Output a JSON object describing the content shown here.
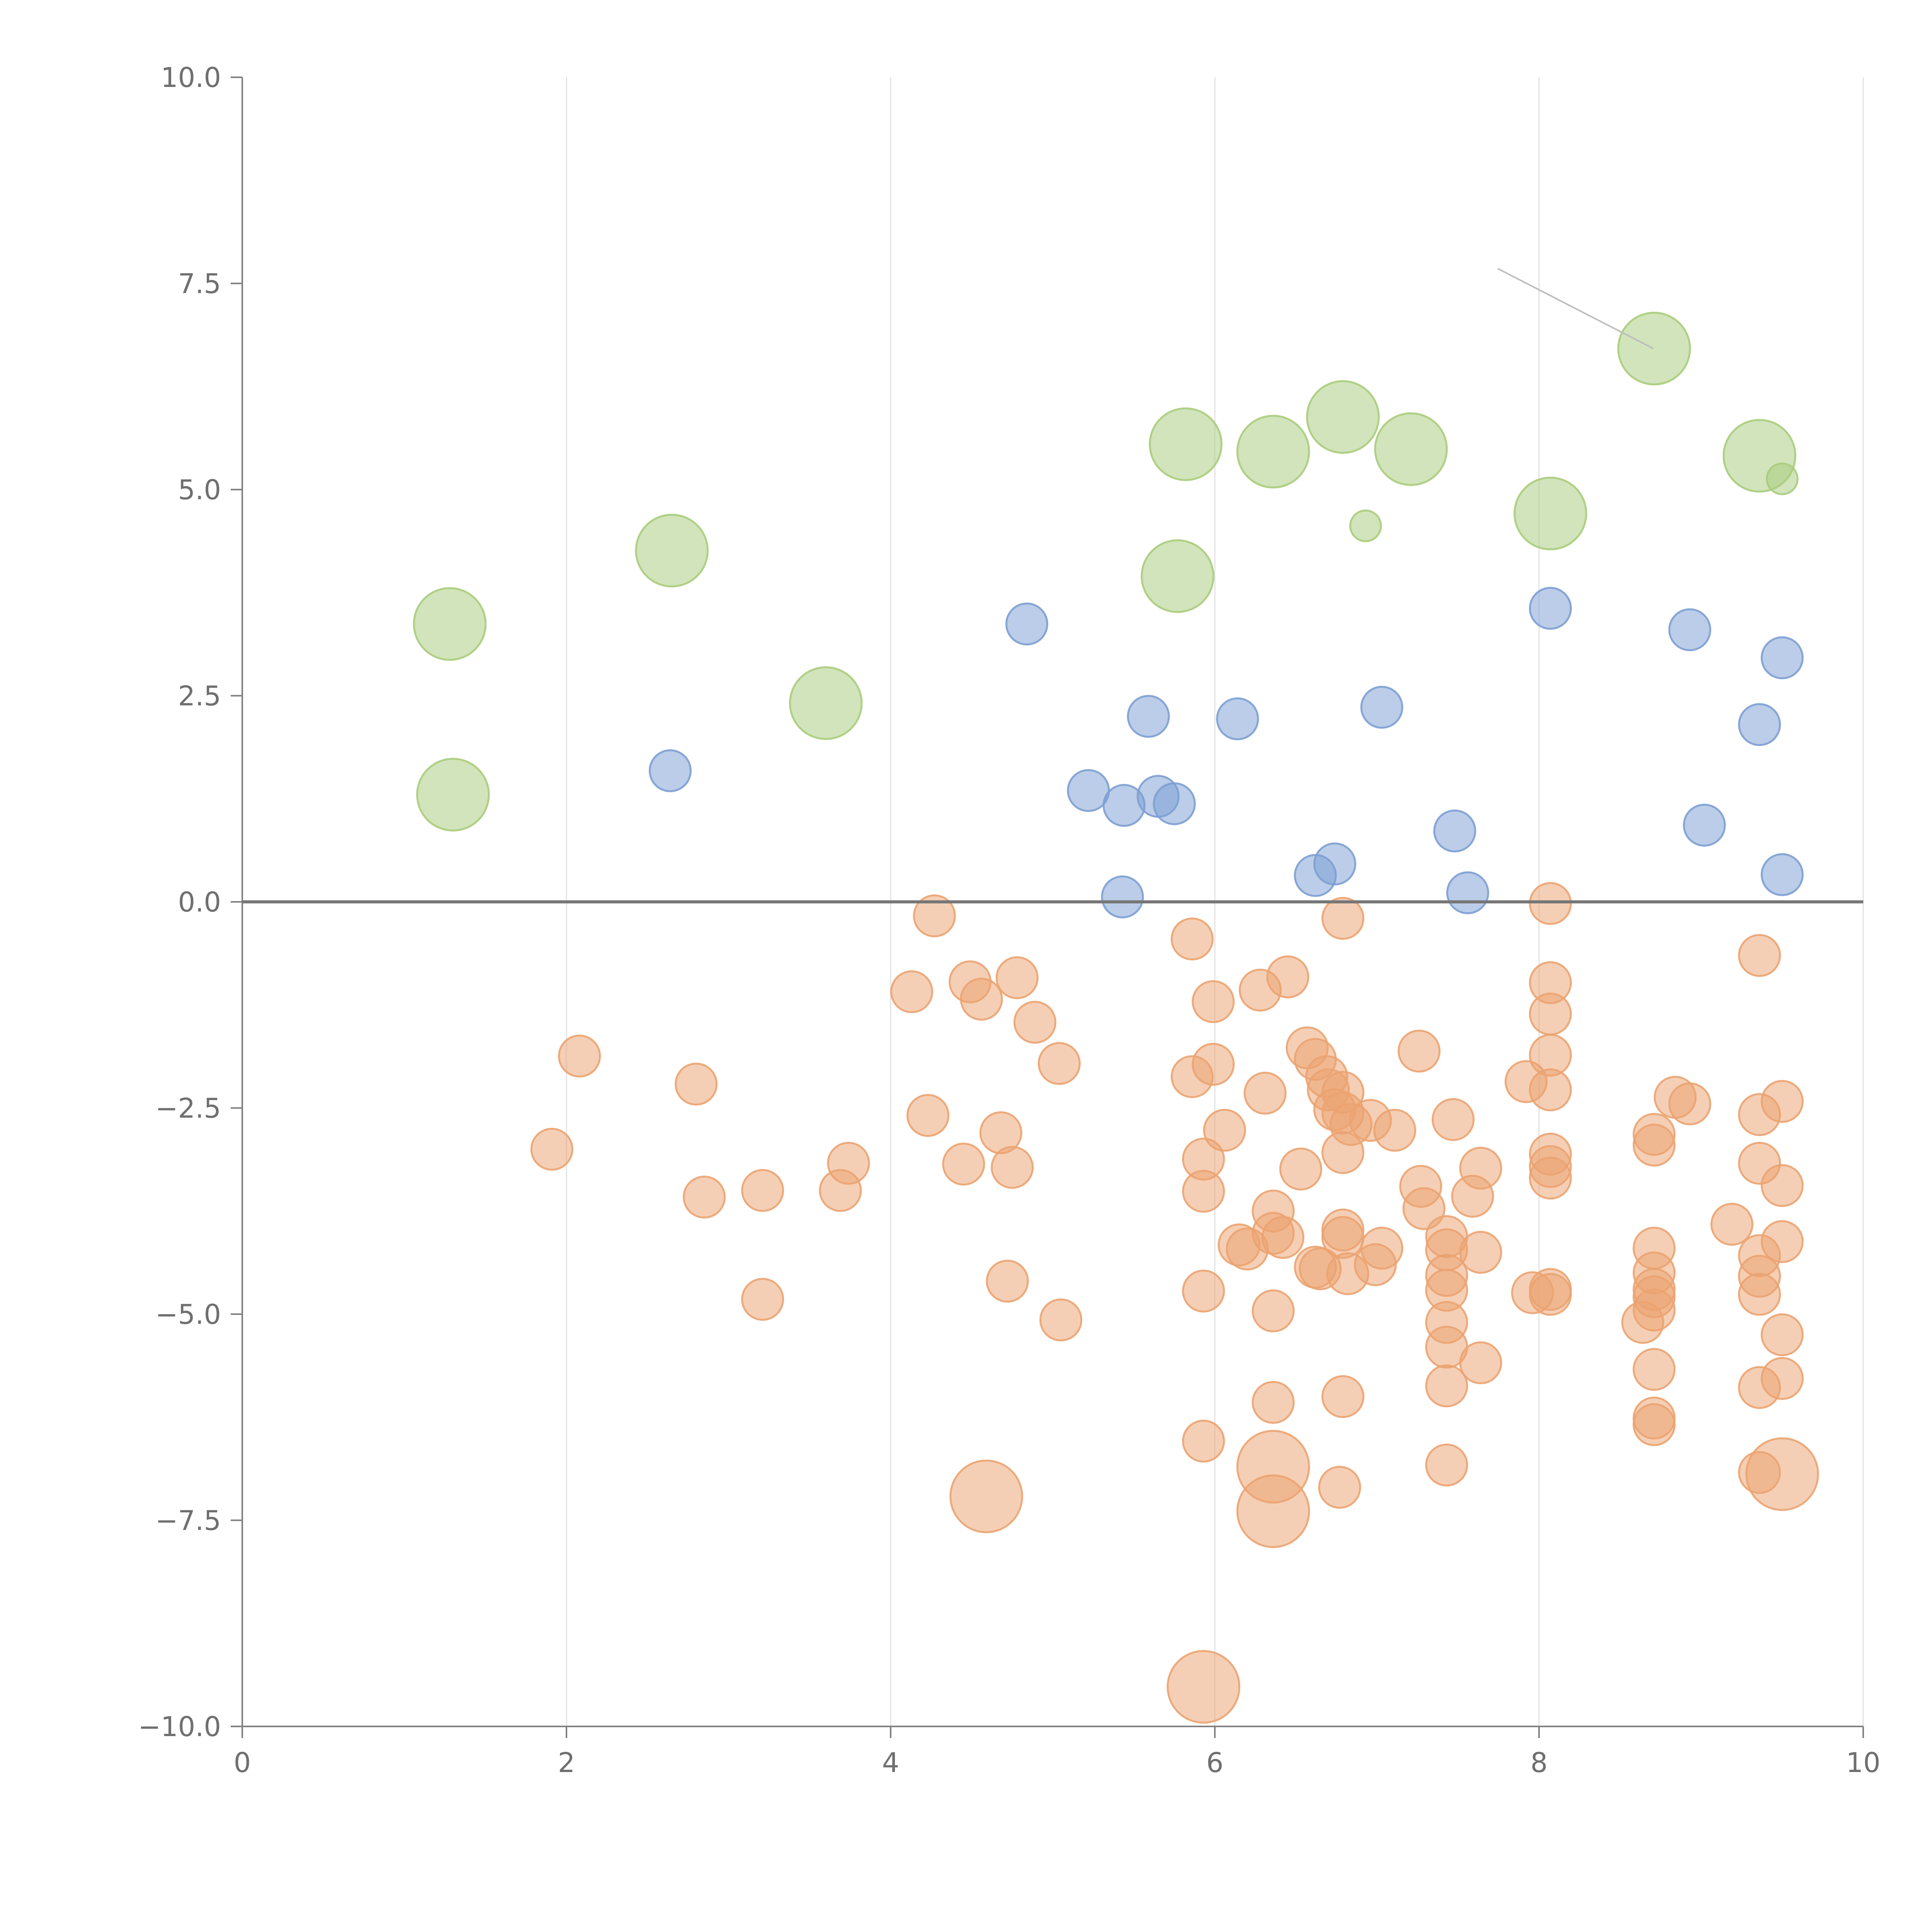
{
  "chart_data": {
    "type": "scatter",
    "title": "",
    "xlabel": "",
    "ylabel": "",
    "xlim": [
      0,
      10
    ],
    "ylim": [
      -10,
      10
    ],
    "x_ticks": [
      "0",
      "2",
      "4",
      "6",
      "8",
      "10"
    ],
    "y_ticks": [
      "10.0",
      "7.5",
      "5.0",
      "2.5",
      "0.0",
      "−2.5",
      "−5.0",
      "−7.5",
      "−10.0"
    ],
    "grid": "vertical only",
    "reference_line": {
      "y": 0
    },
    "series": [
      {
        "name": "green",
        "color": "#a9cc7c",
        "points": [
          [
            1.28,
            3.37,
            1.4
          ],
          [
            1.3,
            1.3,
            1.4
          ],
          [
            2.65,
            4.26,
            1.4
          ],
          [
            3.6,
            2.41,
            1.4
          ],
          [
            5.77,
            3.95,
            1.4
          ],
          [
            5.82,
            5.55,
            1.4
          ],
          [
            6.36,
            5.46,
            1.4
          ],
          [
            6.79,
            5.88,
            1.4
          ],
          [
            7.21,
            5.49,
            1.4
          ],
          [
            8.07,
            4.71,
            1.4
          ],
          [
            8.71,
            6.71,
            1.4
          ],
          [
            9.36,
            5.41,
            1.4
          ],
          [
            6.93,
            4.56,
            0.6
          ],
          [
            9.5,
            5.13,
            0.6
          ]
        ]
      },
      {
        "name": "blue",
        "color": "#7d9fd3",
        "points": [
          [
            2.64,
            1.59,
            0.8
          ],
          [
            4.84,
            3.37,
            0.8
          ],
          [
            5.22,
            1.35,
            0.8
          ],
          [
            5.44,
            1.17,
            0.8
          ],
          [
            5.43,
            0.06,
            0.8
          ],
          [
            5.59,
            2.25,
            0.8
          ],
          [
            5.65,
            1.28,
            0.8
          ],
          [
            5.75,
            1.19,
            0.8
          ],
          [
            6.14,
            2.22,
            0.8
          ],
          [
            6.62,
            0.32,
            0.8
          ],
          [
            6.74,
            0.46,
            0.8
          ],
          [
            7.03,
            2.36,
            0.8
          ],
          [
            7.48,
            0.86,
            0.8
          ],
          [
            7.56,
            0.11,
            0.8
          ],
          [
            8.07,
            3.56,
            0.8
          ],
          [
            8.93,
            3.3,
            0.8
          ],
          [
            9.02,
            0.93,
            0.8
          ],
          [
            9.36,
            2.15,
            0.8
          ],
          [
            9.5,
            2.96,
            0.8
          ],
          [
            9.5,
            0.33,
            0.8
          ]
        ]
      },
      {
        "name": "orange",
        "color": "#eba371",
        "points": [
          [
            1.91,
            -3.0,
            0.8
          ],
          [
            2.08,
            -1.87,
            0.8
          ],
          [
            2.8,
            -2.21,
            0.8
          ],
          [
            2.85,
            -3.58,
            0.8
          ],
          [
            3.21,
            -3.5,
            0.8
          ],
          [
            3.21,
            -4.82,
            0.8
          ],
          [
            3.69,
            -3.5,
            0.8
          ],
          [
            3.74,
            -3.17,
            0.8
          ],
          [
            4.13,
            -1.09,
            0.8
          ],
          [
            4.23,
            -2.59,
            0.8
          ],
          [
            4.27,
            -0.17,
            0.8
          ],
          [
            4.45,
            -3.18,
            0.8
          ],
          [
            4.49,
            -0.97,
            0.8
          ],
          [
            4.56,
            -1.18,
            0.8
          ],
          [
            4.68,
            -2.8,
            0.8
          ],
          [
            4.72,
            -4.6,
            0.8
          ],
          [
            4.75,
            -3.22,
            0.8
          ],
          [
            4.78,
            -0.92,
            0.8
          ],
          [
            4.89,
            -1.46,
            0.8
          ],
          [
            5.04,
            -1.96,
            0.8
          ],
          [
            5.05,
            -5.07,
            0.8
          ],
          [
            5.86,
            -0.45,
            0.8
          ],
          [
            5.86,
            -2.12,
            0.8
          ],
          [
            5.93,
            -3.12,
            0.8
          ],
          [
            5.93,
            -3.51,
            0.8
          ],
          [
            5.93,
            -4.72,
            0.8
          ],
          [
            5.93,
            -6.54,
            0.8
          ],
          [
            5.99,
            -1.21,
            0.8
          ],
          [
            5.99,
            -1.97,
            0.8
          ],
          [
            6.06,
            -2.77,
            0.8
          ],
          [
            6.15,
            -4.16,
            0.8
          ],
          [
            6.2,
            -4.21,
            0.8
          ],
          [
            6.28,
            -1.07,
            0.8
          ],
          [
            6.31,
            -2.32,
            0.8
          ],
          [
            6.36,
            -3.75,
            0.8
          ],
          [
            6.36,
            -4.02,
            0.8
          ],
          [
            6.36,
            -4.96,
            0.8
          ],
          [
            6.36,
            -6.07,
            0.8
          ],
          [
            6.42,
            -4.07,
            0.8
          ],
          [
            6.45,
            -0.91,
            0.8
          ],
          [
            6.53,
            -3.24,
            0.8
          ],
          [
            6.57,
            -1.77,
            0.8
          ],
          [
            6.62,
            -1.91,
            0.8
          ],
          [
            6.62,
            -4.43,
            0.8
          ],
          [
            6.65,
            -4.45,
            0.8
          ],
          [
            6.69,
            -2.12,
            0.8
          ],
          [
            6.7,
            -2.28,
            0.8
          ],
          [
            6.74,
            -2.52,
            0.8
          ],
          [
            6.77,
            -7.1,
            0.8
          ],
          [
            6.79,
            -0.2,
            0.8
          ],
          [
            6.79,
            -2.31,
            0.8
          ],
          [
            6.79,
            -2.56,
            0.8
          ],
          [
            6.79,
            -3.04,
            0.8
          ],
          [
            6.79,
            -3.98,
            0.8
          ],
          [
            6.79,
            -4.07,
            0.8
          ],
          [
            6.79,
            -6.0,
            0.8
          ],
          [
            6.82,
            -4.51,
            0.8
          ],
          [
            6.84,
            -2.7,
            0.8
          ],
          [
            6.96,
            -2.65,
            0.8
          ],
          [
            6.99,
            -4.4,
            0.8
          ],
          [
            7.03,
            -4.2,
            0.8
          ],
          [
            7.11,
            -2.77,
            0.8
          ],
          [
            7.26,
            -1.81,
            0.8
          ],
          [
            7.27,
            -3.45,
            0.8
          ],
          [
            7.29,
            -3.72,
            0.8
          ],
          [
            7.43,
            -4.06,
            0.8
          ],
          [
            7.43,
            -4.22,
            0.8
          ],
          [
            7.43,
            -4.53,
            0.8
          ],
          [
            7.43,
            -4.71,
            0.8
          ],
          [
            7.43,
            -5.1,
            0.8
          ],
          [
            7.43,
            -5.4,
            0.8
          ],
          [
            7.43,
            -5.87,
            0.8
          ],
          [
            7.43,
            -6.83,
            0.8
          ],
          [
            7.47,
            -2.64,
            0.8
          ],
          [
            7.59,
            -3.57,
            0.8
          ],
          [
            7.64,
            -3.23,
            0.8
          ],
          [
            7.64,
            -4.25,
            0.8
          ],
          [
            7.64,
            -5.59,
            0.8
          ],
          [
            7.92,
            -2.18,
            0.8
          ],
          [
            7.96,
            -4.74,
            0.8
          ],
          [
            8.07,
            -0.02,
            0.8
          ],
          [
            8.07,
            -0.98,
            0.8
          ],
          [
            8.07,
            -1.36,
            0.8
          ],
          [
            8.07,
            -1.86,
            0.8
          ],
          [
            8.07,
            -2.28,
            0.8
          ],
          [
            8.07,
            -3.06,
            0.8
          ],
          [
            8.07,
            -3.21,
            0.8
          ],
          [
            8.07,
            -3.35,
            0.8
          ],
          [
            8.07,
            -4.7,
            0.8
          ],
          [
            8.07,
            -4.76,
            0.8
          ],
          [
            8.64,
            -5.1,
            0.8
          ],
          [
            8.71,
            -2.82,
            0.8
          ],
          [
            8.71,
            -2.95,
            0.8
          ],
          [
            8.71,
            -4.2,
            0.8
          ],
          [
            8.71,
            -4.5,
            0.8
          ],
          [
            8.71,
            -4.7,
            0.8
          ],
          [
            8.71,
            -4.79,
            0.8
          ],
          [
            8.71,
            -4.95,
            0.8
          ],
          [
            8.71,
            -5.67,
            0.8
          ],
          [
            8.71,
            -6.26,
            0.8
          ],
          [
            8.71,
            -6.34,
            0.8
          ],
          [
            8.84,
            -2.37,
            0.8
          ],
          [
            8.93,
            -2.45,
            0.8
          ],
          [
            9.19,
            -3.91,
            0.8
          ],
          [
            9.36,
            -0.65,
            0.8
          ],
          [
            9.36,
            -2.58,
            0.8
          ],
          [
            9.36,
            -3.17,
            0.8
          ],
          [
            9.36,
            -4.29,
            0.8
          ],
          [
            9.36,
            -4.54,
            0.8
          ],
          [
            9.36,
            -4.76,
            0.8
          ],
          [
            9.36,
            -5.89,
            0.8
          ],
          [
            9.36,
            -6.92,
            0.8
          ],
          [
            9.5,
            -2.42,
            0.8
          ],
          [
            9.5,
            -3.44,
            0.8
          ],
          [
            9.5,
            -4.12,
            0.8
          ],
          [
            9.5,
            -5.25,
            0.8
          ],
          [
            9.5,
            -5.78,
            0.8
          ],
          [
            4.59,
            -7.21,
            1.4
          ],
          [
            5.93,
            -9.52,
            1.4
          ],
          [
            6.36,
            -6.85,
            1.4
          ],
          [
            6.36,
            -7.39,
            1.4
          ],
          [
            9.5,
            -6.94,
            1.4
          ]
        ]
      }
    ]
  }
}
